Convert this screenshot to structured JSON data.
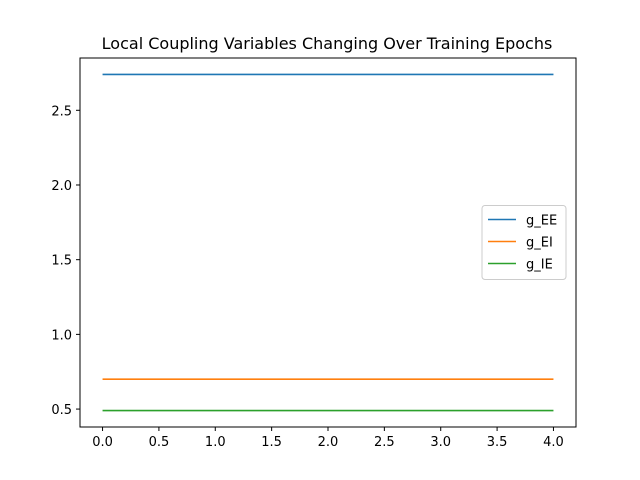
{
  "chart_data": {
    "type": "line",
    "title": "Local Coupling Variables Changing Over Training Epochs",
    "xlabel": "",
    "ylabel": "",
    "x": [
      0,
      1,
      2,
      3,
      4
    ],
    "series": [
      {
        "name": "g_EE",
        "values": [
          2.74,
          2.74,
          2.74,
          2.74,
          2.74
        ],
        "color": "#1f77b4"
      },
      {
        "name": "g_EI",
        "values": [
          0.7,
          0.7,
          0.7,
          0.7,
          0.7
        ],
        "color": "#ff7f0e"
      },
      {
        "name": "g_IE",
        "values": [
          0.49,
          0.49,
          0.49,
          0.49,
          0.49
        ],
        "color": "#2ca02c"
      }
    ],
    "xlim": [
      -0.2,
      4.2
    ],
    "ylim": [
      0.38,
      2.85
    ],
    "xticks": [
      "0.0",
      "0.5",
      "1.0",
      "1.5",
      "2.0",
      "2.5",
      "3.0",
      "3.5",
      "4.0"
    ],
    "yticks": [
      "0.5",
      "1.0",
      "1.5",
      "2.0",
      "2.5"
    ],
    "grid": false,
    "legend": "center-right"
  }
}
